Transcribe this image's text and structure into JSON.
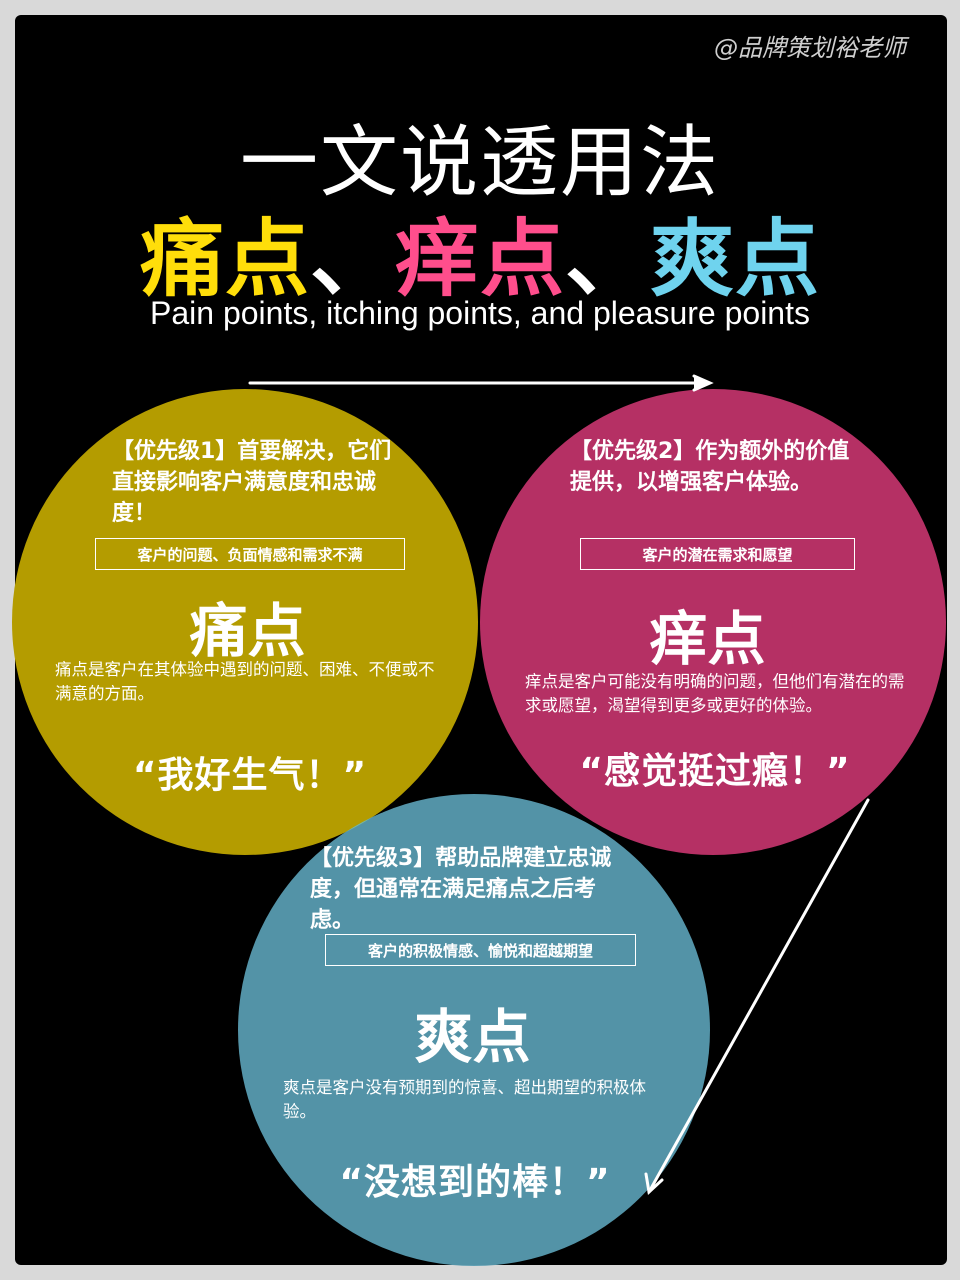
{
  "watermark": "@品牌策划裕老师",
  "title": {
    "main": "一文说透用法",
    "highlight": [
      {
        "text": "痛点",
        "color": "#ffde0a"
      },
      {
        "text": "、",
        "color": "#ffffff"
      },
      {
        "text": "痒点",
        "color": "#ff4e8c"
      },
      {
        "text": "、",
        "color": "#ffffff"
      },
      {
        "text": "爽点",
        "color": "#6fd3ee"
      }
    ],
    "subtitle": "Pain points, itching points, and pleasure points"
  },
  "colors": {
    "pain_circle": "#b49c00",
    "itch_circle": "#b53064",
    "pleasure_circle": "#579bb0",
    "overlap": "#dd5d62"
  },
  "pain": {
    "priority": "【优先级1】首要解决，它们直接影响客户满意度和忠诚度！",
    "tag": "客户的问题、负面情感和需求不满",
    "label": "痛点",
    "description": "痛点是客户在其体验中遇到的问题、困难、不便或不满意的方面。",
    "quote": "“我好生气！”"
  },
  "itch": {
    "priority": "【优先级2】作为额外的价值提供，以增强客户体验。",
    "tag": "客户的潜在需求和愿望",
    "label": "痒点",
    "description": "痒点是客户可能没有明确的问题，但他们有潜在的需求或愿望，渴望得到更多或更好的体验。",
    "quote": "“感觉挺过瘾！”"
  },
  "pleasure": {
    "priority": "【优先级3】帮助品牌建立忠诚度，但通常在满足痛点之后考虑。",
    "tag": "客户的积极情感、愉悦和超越期望",
    "label": "爽点",
    "description": "爽点是客户没有预期到的惊喜、超出期望的积极体验。",
    "quote": "“没想到的棒！”"
  }
}
